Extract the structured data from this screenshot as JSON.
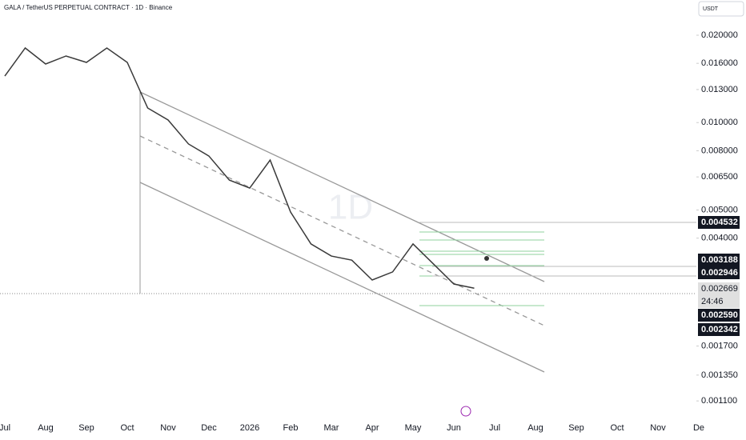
{
  "header": {
    "title": "GALA / TetherUS PERPETUAL CONTRACT · 1D · Binance",
    "currency": "USDT",
    "watermark": "1D"
  },
  "chart_data": {
    "type": "line",
    "log_scale": true,
    "color": "#3a3a3a",
    "categories": [
      "Jul",
      null,
      "Aug",
      null,
      "Sep",
      null,
      "Oct",
      null,
      "Nov",
      null,
      "Dec",
      null,
      "2026",
      null,
      "Feb",
      null,
      "Mar",
      null,
      "Apr",
      null,
      "May",
      null,
      "Jun",
      null,
      "Jul",
      null,
      "Aug",
      null,
      "Sep",
      null,
      "Oct",
      null,
      "Nov",
      null,
      "De",
      null
    ],
    "series": [
      {
        "name": "GALA/USDT",
        "color": "#3a3a3a",
        "values": [
          0.01447,
          0.01807,
          0.01592,
          0.01696,
          0.01612,
          0.01807,
          0.01612,
          0.01123,
          0.01021,
          0.00844,
          0.00767,
          0.00634,
          0.00595,
          0.00743,
          0.00492,
          0.00382,
          0.00347,
          0.00336,
          0.00287,
          0.00306,
          0.00382,
          0.00326,
          0.00278,
          0.00269,
          null,
          null,
          null,
          null,
          null,
          null,
          null,
          null,
          null,
          null,
          null,
          null
        ]
      }
    ],
    "ylim": [
      0.000976,
      0.02644
    ],
    "yticks": [
      {
        "value": 0.02,
        "label": "0.020000"
      },
      {
        "value": 0.016,
        "label": "0.016000"
      },
      {
        "value": 0.013,
        "label": "0.013000"
      },
      {
        "value": 0.01,
        "label": "0.010000"
      },
      {
        "value": 0.008,
        "label": "0.008000"
      },
      {
        "value": 0.0065,
        "label": "0.006500"
      },
      {
        "value": 0.005,
        "label": "0.005000"
      },
      {
        "value": 0.004,
        "label": "0.004000"
      },
      {
        "value": 0.0017,
        "label": "0.001700"
      },
      {
        "value": 0.00135,
        "label": "0.001350"
      },
      {
        "value": 0.0011,
        "label": "0.001100"
      }
    ]
  },
  "price_labels": [
    "0.004532",
    "0.003188",
    "0.002946",
    "0.002669",
    "24:46",
    "0.002590",
    "0.002342"
  ]
}
